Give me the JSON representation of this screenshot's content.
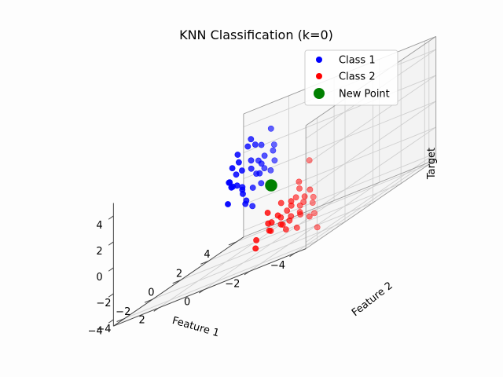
{
  "chart_data": {
    "type": "scatter",
    "projection": "3d",
    "title": "KNN Classification (k=0)",
    "xlabel": "Feature 1",
    "ylabel": "Feature 2",
    "zlabel": "Target",
    "xlim": [
      -4.5,
      4.0
    ],
    "ylim": [
      -4.8,
      4.5
    ],
    "zlim": [
      -4.5,
      5.0
    ],
    "xticks": [
      -4,
      -2,
      0,
      2
    ],
    "yticks": [
      -4,
      -2,
      0,
      2,
      4
    ],
    "zticks": [
      -4,
      -2,
      0,
      2,
      4
    ],
    "grid": true,
    "legend_position": "top-right",
    "series": [
      {
        "name": "Class 1",
        "color": "#0000ff",
        "marker": "circle",
        "points": [
          [
            2.0,
            2.1,
            3.0
          ],
          [
            2.5,
            2.6,
            3.4
          ],
          [
            1.6,
            2.8,
            2.2
          ],
          [
            2.4,
            1.8,
            1.5
          ],
          [
            2.9,
            2.3,
            2.7
          ],
          [
            1.5,
            1.6,
            0.8
          ],
          [
            2.2,
            2.5,
            0.6
          ],
          [
            2.7,
            1.4,
            1.1
          ],
          [
            3.1,
            2.0,
            0.9
          ],
          [
            1.8,
            2.2,
            -0.2
          ],
          [
            2.3,
            1.7,
            -0.3
          ],
          [
            2.6,
            2.9,
            -0.5
          ],
          [
            2.0,
            3.2,
            0.2
          ],
          [
            1.4,
            2.4,
            1.9
          ],
          [
            2.8,
            3.1,
            1.6
          ],
          [
            3.3,
            2.6,
            0.3
          ],
          [
            1.9,
            1.3,
            -0.8
          ],
          [
            2.5,
            2.2,
            -1.3
          ],
          [
            2.1,
            2.7,
            2.6
          ],
          [
            2.6,
            1.9,
            2.2
          ],
          [
            3.0,
            2.8,
            -0.1
          ],
          [
            1.7,
            3.0,
            0.9
          ],
          [
            2.3,
            2.3,
            1.2
          ],
          [
            2.9,
            1.6,
            -0.6
          ],
          [
            2.4,
            3.4,
            0.5
          ],
          [
            1.6,
            1.9,
            1.4
          ],
          [
            3.2,
            2.4,
            1.8
          ],
          [
            2.2,
            1.5,
            0.1
          ],
          [
            2.7,
            2.7,
            2.9
          ],
          [
            1.9,
            2.6,
            1.7
          ],
          [
            2.5,
            1.2,
            0.7
          ],
          [
            3.4,
            3.0,
            1.0
          ],
          [
            2.0,
            1.9,
            -1.6
          ],
          [
            2.8,
            2.1,
            0.4
          ],
          [
            1.8,
            2.9,
            3.5
          ],
          [
            2.6,
            3.3,
            1.3
          ]
        ]
      },
      {
        "name": "Class 2",
        "color": "#ff0000",
        "marker": "circle",
        "points": [
          [
            -2.0,
            -2.1,
            -1.8
          ],
          [
            -2.5,
            -2.6,
            -1.4
          ],
          [
            -1.6,
            -2.8,
            -2.0
          ],
          [
            -2.4,
            -1.8,
            -2.6
          ],
          [
            -2.9,
            -2.3,
            -1.2
          ],
          [
            -1.5,
            -1.6,
            -2.9
          ],
          [
            -2.2,
            -2.5,
            -3.1
          ],
          [
            -2.7,
            -1.4,
            -2.2
          ],
          [
            -3.1,
            -2.0,
            -1.6
          ],
          [
            -1.8,
            -2.2,
            -1.0
          ],
          [
            -2.3,
            -1.7,
            -0.6
          ],
          [
            -2.6,
            -2.9,
            -2.4
          ],
          [
            -2.0,
            -3.2,
            -1.9
          ],
          [
            -1.4,
            -2.4,
            -2.7
          ],
          [
            -2.8,
            -3.1,
            -0.9
          ],
          [
            -3.3,
            -2.6,
            -2.8
          ],
          [
            -1.9,
            -1.3,
            -1.3
          ],
          [
            -2.5,
            -2.2,
            -3.4
          ],
          [
            -2.1,
            -2.7,
            -2.5
          ],
          [
            -2.6,
            -1.9,
            -1.7
          ],
          [
            -3.0,
            -2.8,
            -2.1
          ],
          [
            -1.7,
            -3.0,
            -1.1
          ],
          [
            -2.3,
            -2.3,
            -2.3
          ],
          [
            -2.9,
            -1.6,
            -3.0
          ],
          [
            -2.4,
            -3.4,
            -1.5
          ],
          [
            -1.6,
            -1.9,
            -2.2
          ],
          [
            -3.2,
            -2.4,
            -0.8
          ],
          [
            -2.2,
            -1.5,
            -2.0
          ],
          [
            -0.6,
            -1.0,
            -3.2
          ],
          [
            0.1,
            -0.9,
            -3.5
          ],
          [
            -0.3,
            -1.6,
            -3.9
          ],
          [
            -4.2,
            -3.5,
            -3.6
          ],
          [
            -2.0,
            -0.5,
            0.9
          ],
          [
            -1.6,
            -0.6,
            -0.4
          ]
        ]
      },
      {
        "name": "New Point",
        "color": "#008000",
        "marker": "circle",
        "points": [
          [
            0.0,
            0.0,
            0.0
          ]
        ]
      }
    ]
  }
}
